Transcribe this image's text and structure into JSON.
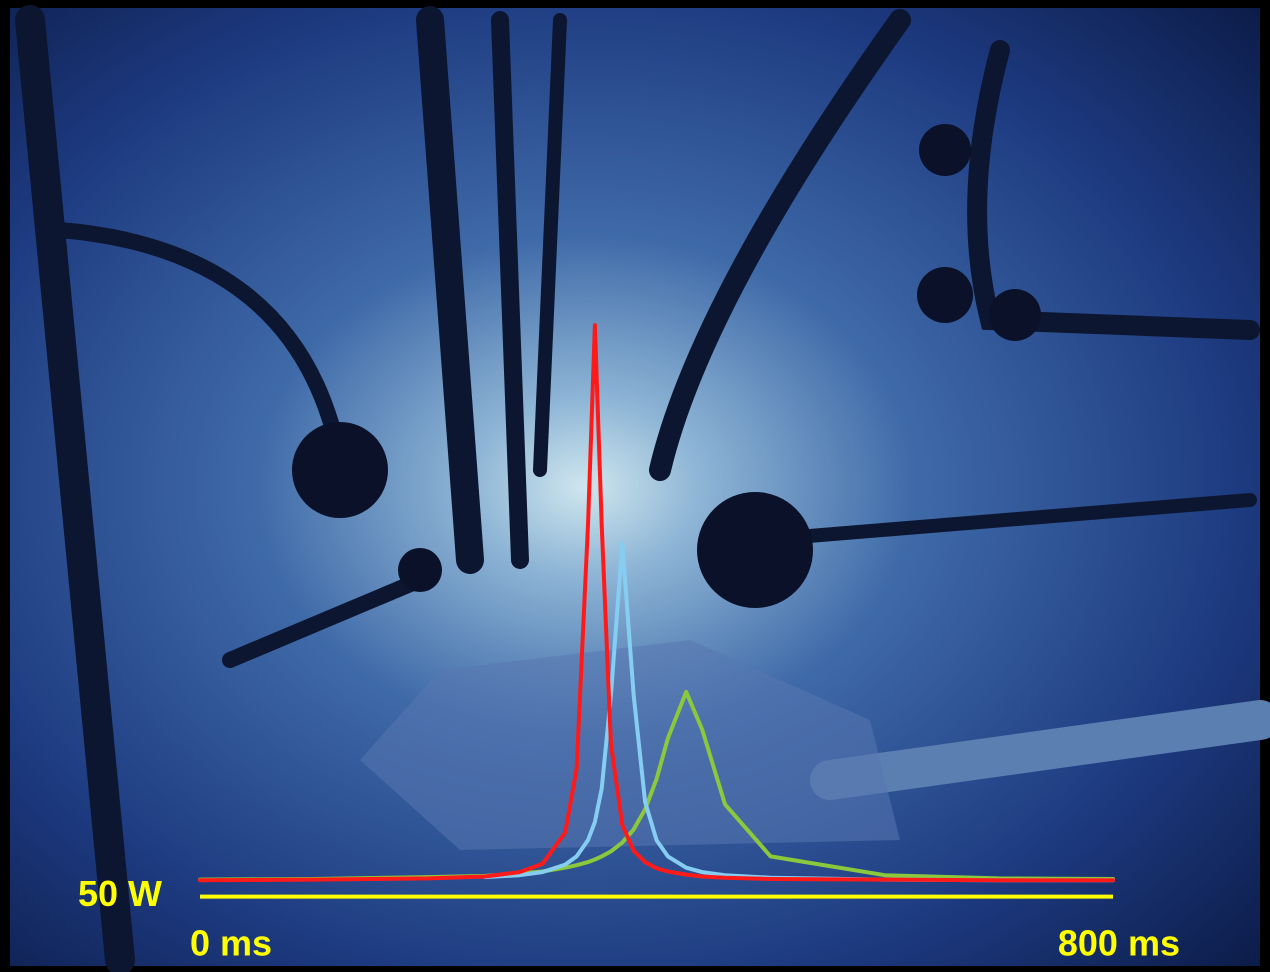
{
  "chart_data": {
    "type": "line",
    "x": [
      0,
      100,
      200,
      250,
      280,
      300,
      320,
      330,
      340,
      346,
      352,
      360,
      370,
      380,
      390,
      400,
      410,
      426,
      440,
      460,
      500,
      600,
      700,
      800
    ],
    "series": [
      {
        "color": "#ff1a1a",
        "values": [
          76,
          77,
          79,
          82,
          89,
          102,
          152,
          253,
          642,
          960,
          642,
          294,
          164,
          123,
          105,
          95,
          90,
          85,
          82,
          80,
          78,
          77,
          76,
          76
        ]
      },
      {
        "color": "#86cdf2",
        "values": [
          null,
          null,
          null,
          81,
          84,
          89,
          101,
          114,
          140,
          169,
          222,
          370,
          613,
          370,
          201,
          140,
          114,
          96,
          89,
          84,
          80,
          77,
          76,
          76
        ]
      },
      {
        "color": "#8cc83c",
        "values": [
          77,
          78,
          81,
          83,
          87,
          90,
          96,
          100,
          105,
          109,
          114,
          122,
          136,
          157,
          189,
          237,
          302,
          376,
          316,
          197,
          114,
          84,
          79,
          78
        ]
      }
    ],
    "xlim": [
      0,
      800
    ],
    "xticks": [
      {
        "value": 0,
        "label": "0 ms"
      },
      {
        "value": 800,
        "label": "800 ms"
      }
    ],
    "ylim": [
      0,
      1000
    ],
    "yticks": [
      {
        "value": 50,
        "label": "50 W"
      }
    ],
    "tick_color": "#ffff00"
  }
}
